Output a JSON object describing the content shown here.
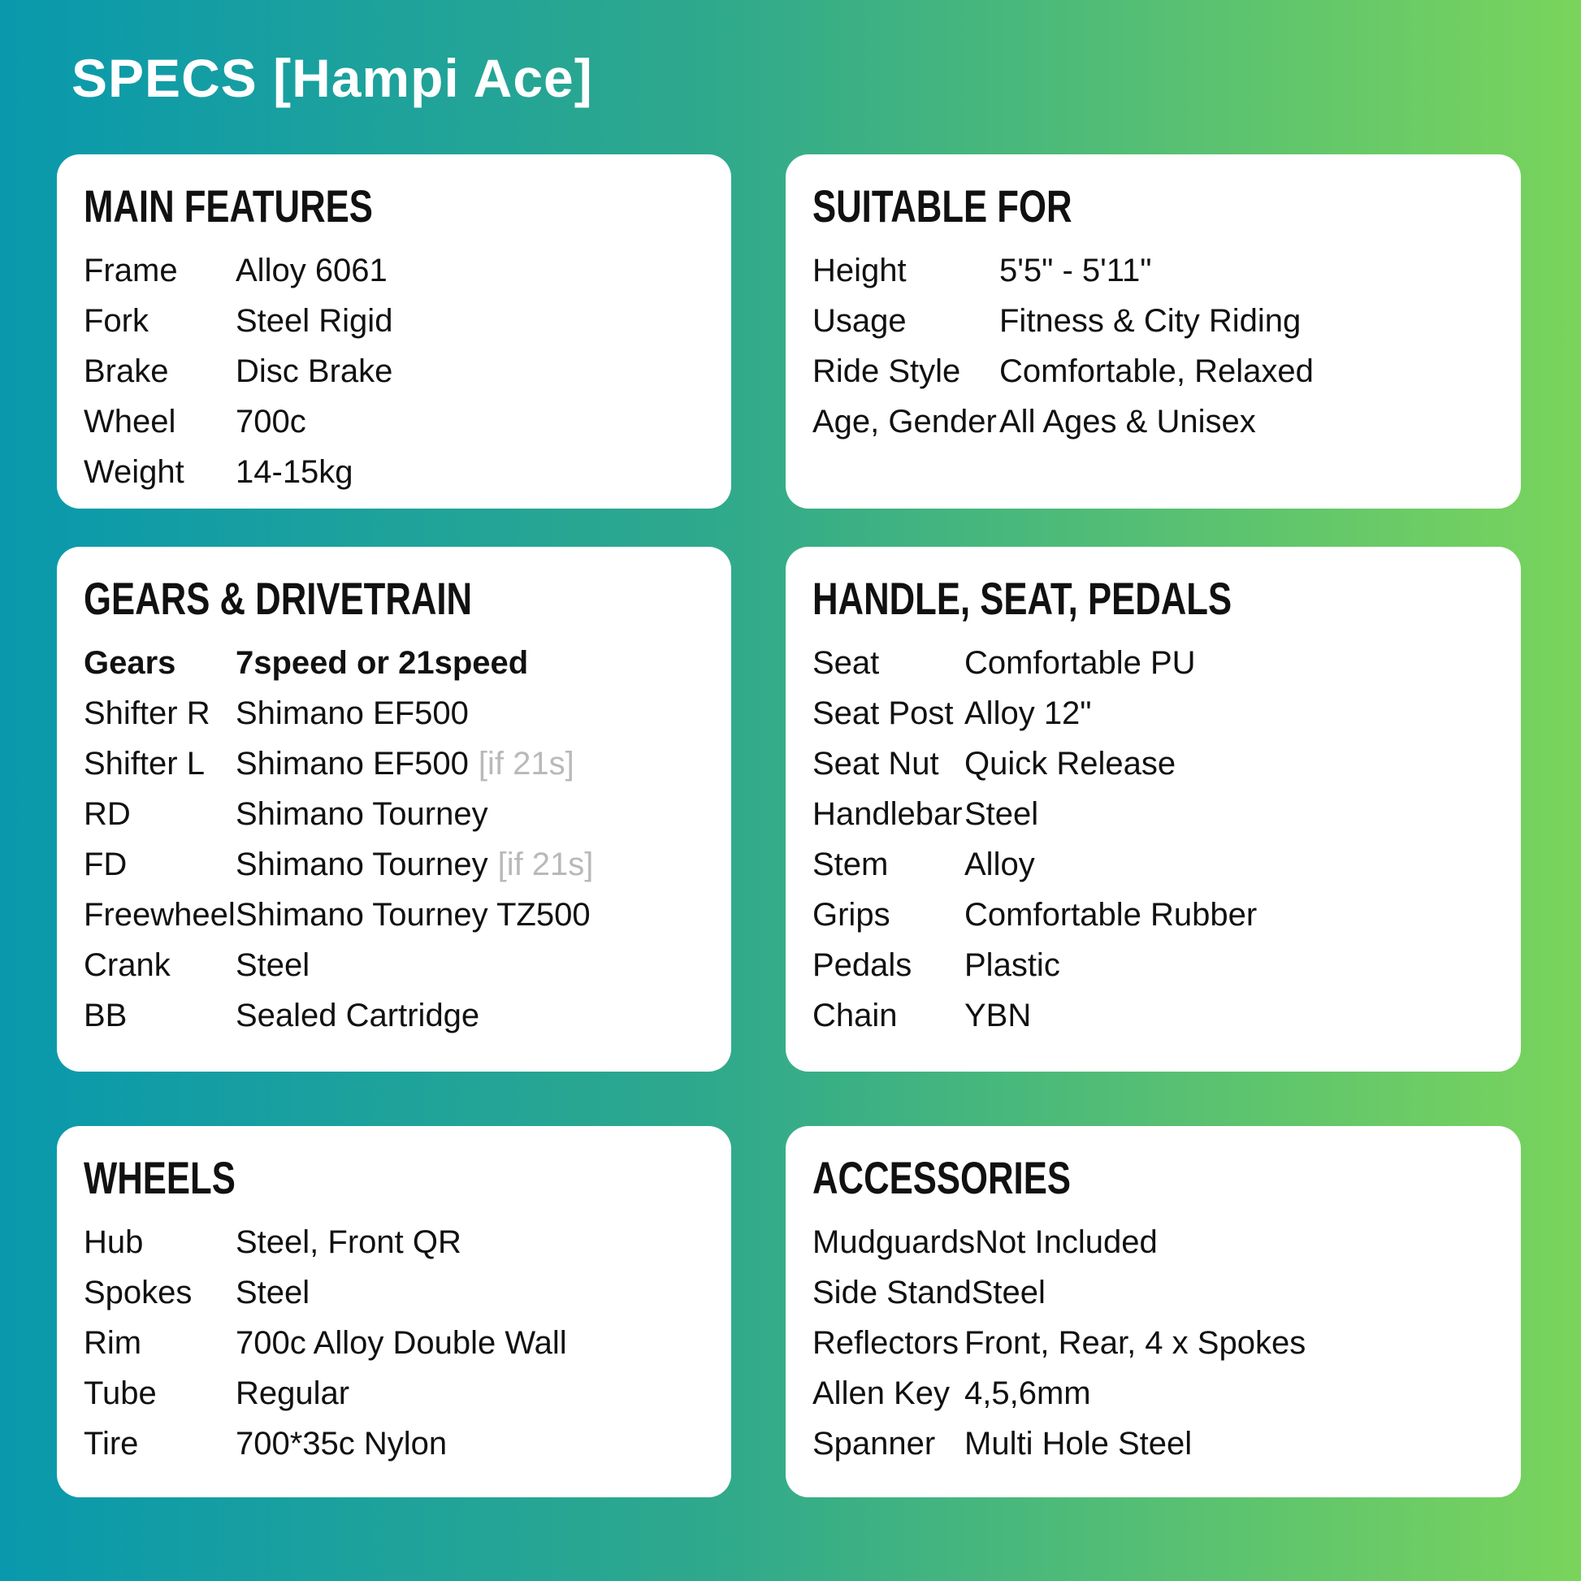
{
  "title": "SPECS [Hampi Ace]",
  "colors": {
    "bg_gradient_start": "#0999ad",
    "bg_gradient_end": "#7ad45c",
    "card_bg": "#ffffff",
    "text": "#111111",
    "title_text": "#ffffff",
    "note_muted": "#b9b9b9"
  },
  "cards": [
    {
      "key": "main-features",
      "title": "MAIN FEATURES",
      "rows": [
        {
          "label": "Frame",
          "value": "Alloy 6061"
        },
        {
          "label": "Fork",
          "value": "Steel Rigid"
        },
        {
          "label": "Brake",
          "value": "Disc Brake"
        },
        {
          "label": "Wheel",
          "value": "700c"
        },
        {
          "label": "Weight",
          "value": "14-15kg"
        }
      ]
    },
    {
      "key": "suitable-for",
      "title": "SUITABLE FOR",
      "rows": [
        {
          "label": "Height",
          "value": "5'5\" - 5'11\""
        },
        {
          "label": "Usage",
          "value": "Fitness & City Riding"
        },
        {
          "label": "Ride Style",
          "value": "Comfortable, Relaxed"
        },
        {
          "label": "Age, Gender",
          "value": "All Ages & Unisex"
        }
      ]
    },
    {
      "key": "gears-drivetrain",
      "title": "GEARS & DRIVETRAIN",
      "rows": [
        {
          "label": "Gears",
          "value": "7speed or 21speed",
          "bold": true
        },
        {
          "label": "Shifter R",
          "value": "Shimano EF500"
        },
        {
          "label": "Shifter L",
          "value": "Shimano EF500",
          "note": "[if 21s]"
        },
        {
          "label": "RD",
          "value": "Shimano Tourney"
        },
        {
          "label": "FD",
          "value": "Shimano Tourney",
          "note": "[if 21s]"
        },
        {
          "label": "Freewheel",
          "value": "Shimano Tourney TZ500"
        },
        {
          "label": "Crank",
          "value": "Steel"
        },
        {
          "label": "BB",
          "value": "Sealed Cartridge"
        }
      ]
    },
    {
      "key": "handle-seat-pedals",
      "title": "HANDLE, SEAT, PEDALS",
      "rows": [
        {
          "label": "Seat",
          "value": "Comfortable PU"
        },
        {
          "label": "Seat Post",
          "value": "Alloy 12\""
        },
        {
          "label": "Seat Nut",
          "value": "Quick Release"
        },
        {
          "label": "Handlebar",
          "value": "Steel"
        },
        {
          "label": "Stem",
          "value": "Alloy"
        },
        {
          "label": "Grips",
          "value": "Comfortable Rubber"
        },
        {
          "label": "Pedals",
          "value": "Plastic"
        },
        {
          "label": "Chain",
          "value": "YBN"
        }
      ]
    },
    {
      "key": "wheels",
      "title": "WHEELS",
      "rows": [
        {
          "label": "Hub",
          "value": "Steel, Front QR"
        },
        {
          "label": "Spokes",
          "value": "Steel"
        },
        {
          "label": "Rim",
          "value": "700c Alloy Double Wall"
        },
        {
          "label": "Tube",
          "value": "Regular"
        },
        {
          "label": "Tire",
          "value": "700*35c Nylon"
        }
      ]
    },
    {
      "key": "accessories",
      "title": "ACCESSORIES",
      "rows": [
        {
          "label": "Mudguards",
          "value": "Not Included"
        },
        {
          "label": "Side Stand",
          "value": "Steel"
        },
        {
          "label": "Reflectors",
          "value": "Front, Rear, 4 x Spokes"
        },
        {
          "label": "Allen Key",
          "value": "4,5,6mm"
        },
        {
          "label": "Spanner",
          "value": "Multi Hole Steel"
        }
      ]
    }
  ]
}
